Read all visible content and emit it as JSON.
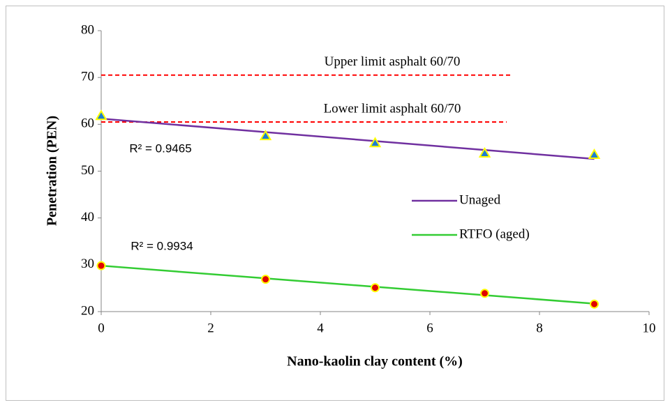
{
  "chart_data": {
    "type": "scatter",
    "x_label": "Nano-kaolin clay content (%)",
    "y_label": "Penetration (PEN)",
    "xlim": [
      0,
      10
    ],
    "xticks": [
      0,
      2,
      4,
      6,
      8,
      10
    ],
    "ylim": [
      20,
      80
    ],
    "yticks": [
      20,
      30,
      40,
      50,
      60,
      70,
      80
    ],
    "grid": false,
    "legend": "right",
    "series": [
      {
        "name": "Unaged",
        "color": "#7030a0",
        "marker": "triangle",
        "marker_color": "#1f7fd0",
        "marker_edge": "#ffff00",
        "x": [
          0,
          3,
          5,
          7,
          9
        ],
        "values": [
          61.8,
          57.5,
          56,
          53.8,
          53.5
        ],
        "trend": {
          "x": [
            0,
            9
          ],
          "values": [
            61.2,
            52.6
          ]
        },
        "r2_label": "R² = 0.9465"
      },
      {
        "name": "RTFO (aged)",
        "color": "#33cc33",
        "marker": "circle",
        "marker_color": "#e00000",
        "marker_edge": "#ffff00",
        "x": [
          0,
          3,
          5,
          7,
          9
        ],
        "values": [
          29.8,
          26.9,
          25.1,
          23.9,
          21.6
        ],
        "trend": {
          "x": [
            0,
            9
          ],
          "values": [
            29.8,
            21.7
          ]
        },
        "r2_label": "R² = 0.9934"
      }
    ],
    "reference_lines": [
      {
        "label": "Upper limit asphalt 60/70",
        "value": 70.5,
        "x": [
          0,
          7.5
        ],
        "color": "#ff0000"
      },
      {
        "label": "Lower limit asphalt 60/70",
        "value": 60.5,
        "x": [
          0,
          7.4
        ],
        "color": "#ff0000"
      }
    ]
  }
}
